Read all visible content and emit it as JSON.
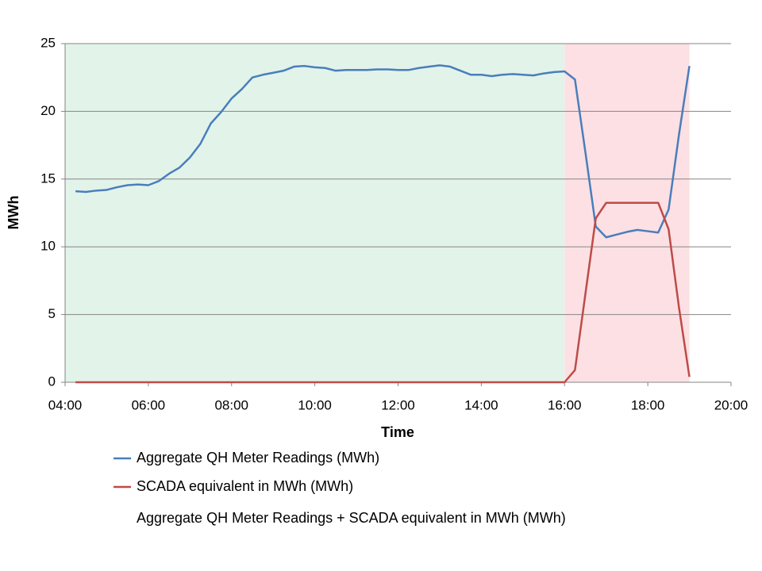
{
  "chart_data": {
    "type": "line",
    "x_label": "Time",
    "y_label": "MWh",
    "xlim": [
      4,
      20
    ],
    "ylim": [
      0,
      25
    ],
    "xticks": [
      {
        "value": 4,
        "label": "04:00"
      },
      {
        "value": 6,
        "label": "06:00"
      },
      {
        "value": 8,
        "label": "08:00"
      },
      {
        "value": 10,
        "label": "10:00"
      },
      {
        "value": 12,
        "label": "12:00"
      },
      {
        "value": 14,
        "label": "14:00"
      },
      {
        "value": 16,
        "label": "16:00"
      },
      {
        "value": 18,
        "label": "18:00"
      },
      {
        "value": 20,
        "label": "20:00"
      }
    ],
    "yticks": [
      0,
      5,
      10,
      15,
      20,
      25
    ],
    "grid": true,
    "bands": [
      {
        "from": 4,
        "to": 16,
        "color": "#e2f3ea"
      },
      {
        "from": 16,
        "to": 19,
        "color": "#fde0e3"
      }
    ],
    "x": [
      4.25,
      4.5,
      4.75,
      5,
      5.25,
      5.5,
      5.75,
      6,
      6.25,
      6.5,
      6.75,
      7,
      7.25,
      7.5,
      7.75,
      8,
      8.25,
      8.5,
      8.75,
      9,
      9.25,
      9.5,
      9.75,
      10,
      10.25,
      10.5,
      10.75,
      11,
      11.25,
      11.5,
      11.75,
      12,
      12.25,
      12.5,
      12.75,
      13,
      13.25,
      13.5,
      13.75,
      14,
      14.25,
      14.5,
      14.75,
      15,
      15.25,
      15.5,
      15.75,
      16,
      16.25,
      16.5,
      16.75,
      17,
      17.25,
      17.5,
      17.75,
      18,
      18.25,
      18.5,
      18.75,
      19
    ],
    "series": [
      {
        "name": "Aggregate QH Meter Readings (MWh)",
        "color": "#4a7ebb",
        "values": [
          14.1,
          14.05,
          14.15,
          14.2,
          14.4,
          14.55,
          14.6,
          14.55,
          14.85,
          15.4,
          15.85,
          16.6,
          17.6,
          19.1,
          19.95,
          20.95,
          21.65,
          22.5,
          22.7,
          22.85,
          23.0,
          23.3,
          23.35,
          23.25,
          23.2,
          23.0,
          23.05,
          23.05,
          23.05,
          23.1,
          23.1,
          23.05,
          23.05,
          23.2,
          23.3,
          23.4,
          23.3,
          23.0,
          22.7,
          22.7,
          22.6,
          22.7,
          22.75,
          22.7,
          22.65,
          22.8,
          22.9,
          22.95,
          22.35,
          17,
          11.5,
          10.7,
          10.9,
          11.1,
          11.25,
          11.15,
          11.05,
          12.75,
          18.3,
          23.35
        ]
      },
      {
        "name": "SCADA equivalent in MWh (MWh)",
        "color": "#be4b48",
        "values": [
          0,
          0,
          0,
          0,
          0,
          0,
          0,
          0,
          0,
          0,
          0,
          0,
          0,
          0,
          0,
          0,
          0,
          0,
          0,
          0,
          0,
          0,
          0,
          0,
          0,
          0,
          0,
          0,
          0,
          0,
          0,
          0,
          0,
          0,
          0,
          0,
          0,
          0,
          0,
          0,
          0,
          0,
          0,
          0,
          0,
          0,
          0,
          0,
          0.9,
          6.5,
          12.1,
          13.25,
          13.25,
          13.25,
          13.25,
          13.25,
          13.25,
          11.3,
          5.5,
          0.4
        ]
      },
      {
        "name": "Aggregate QH Meter Readings + SCADA equivalent in MWh (MWh)",
        "color": null,
        "values": [
          null,
          null,
          null,
          null,
          null,
          null,
          null,
          null,
          null,
          null,
          null,
          null,
          null,
          null,
          null,
          null,
          null,
          null,
          null,
          null,
          null,
          null,
          null,
          null,
          null,
          null,
          null,
          null,
          null,
          null,
          null,
          null,
          null,
          null,
          null,
          null,
          null,
          null,
          null,
          null,
          null,
          null,
          null,
          null,
          null,
          null,
          null,
          null,
          null,
          null,
          null,
          null,
          null,
          null,
          null,
          null,
          null,
          null,
          null,
          null
        ]
      }
    ]
  }
}
